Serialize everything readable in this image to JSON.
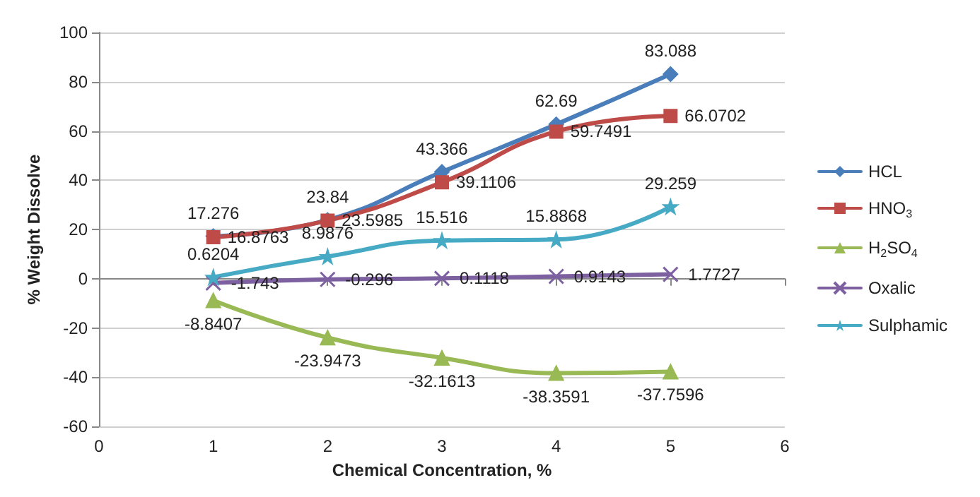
{
  "chart_data": {
    "type": "line",
    "xlabel": "Chemical Concentration, %",
    "ylabel": "% Weight Dissolve",
    "x": [
      1,
      2,
      3,
      4,
      5
    ],
    "xlim": [
      0,
      6
    ],
    "xticks": [
      0,
      1,
      2,
      3,
      4,
      5,
      6
    ],
    "ylim": [
      -60,
      100
    ],
    "yticks": [
      -60,
      -40,
      -20,
      0,
      20,
      40,
      60,
      80,
      100
    ],
    "grid": "y",
    "legend": "right",
    "data_labels": true,
    "line_style": "solid",
    "series": [
      {
        "name": "HCL",
        "color": "#4a7ebb",
        "marker": "diamond",
        "values": [
          17.276,
          23.84,
          43.366,
          62.69,
          83.088
        ]
      },
      {
        "name": "HNO$_{3}$",
        "color": "#be4b48",
        "marker": "square",
        "values": [
          16.8763,
          23.5985,
          39.1106,
          59.7491,
          66.0702
        ]
      },
      {
        "name": "H$_{2}$SO$_{4}$",
        "color": "#98b954",
        "marker": "triangle",
        "values": [
          -8.8407,
          -23.9473,
          -32.1613,
          -38.3591,
          -37.7596
        ]
      },
      {
        "name": "Oxalic",
        "color": "#7d60a0",
        "marker": "cross",
        "values": [
          -1.743,
          -0.296,
          0.1118,
          0.9143,
          1.7727
        ]
      },
      {
        "name": "Sulphamic",
        "color": "#46aac5",
        "marker": "star",
        "values": [
          0.6204,
          8.9876,
          15.516,
          15.8868,
          29.259
        ]
      }
    ]
  }
}
